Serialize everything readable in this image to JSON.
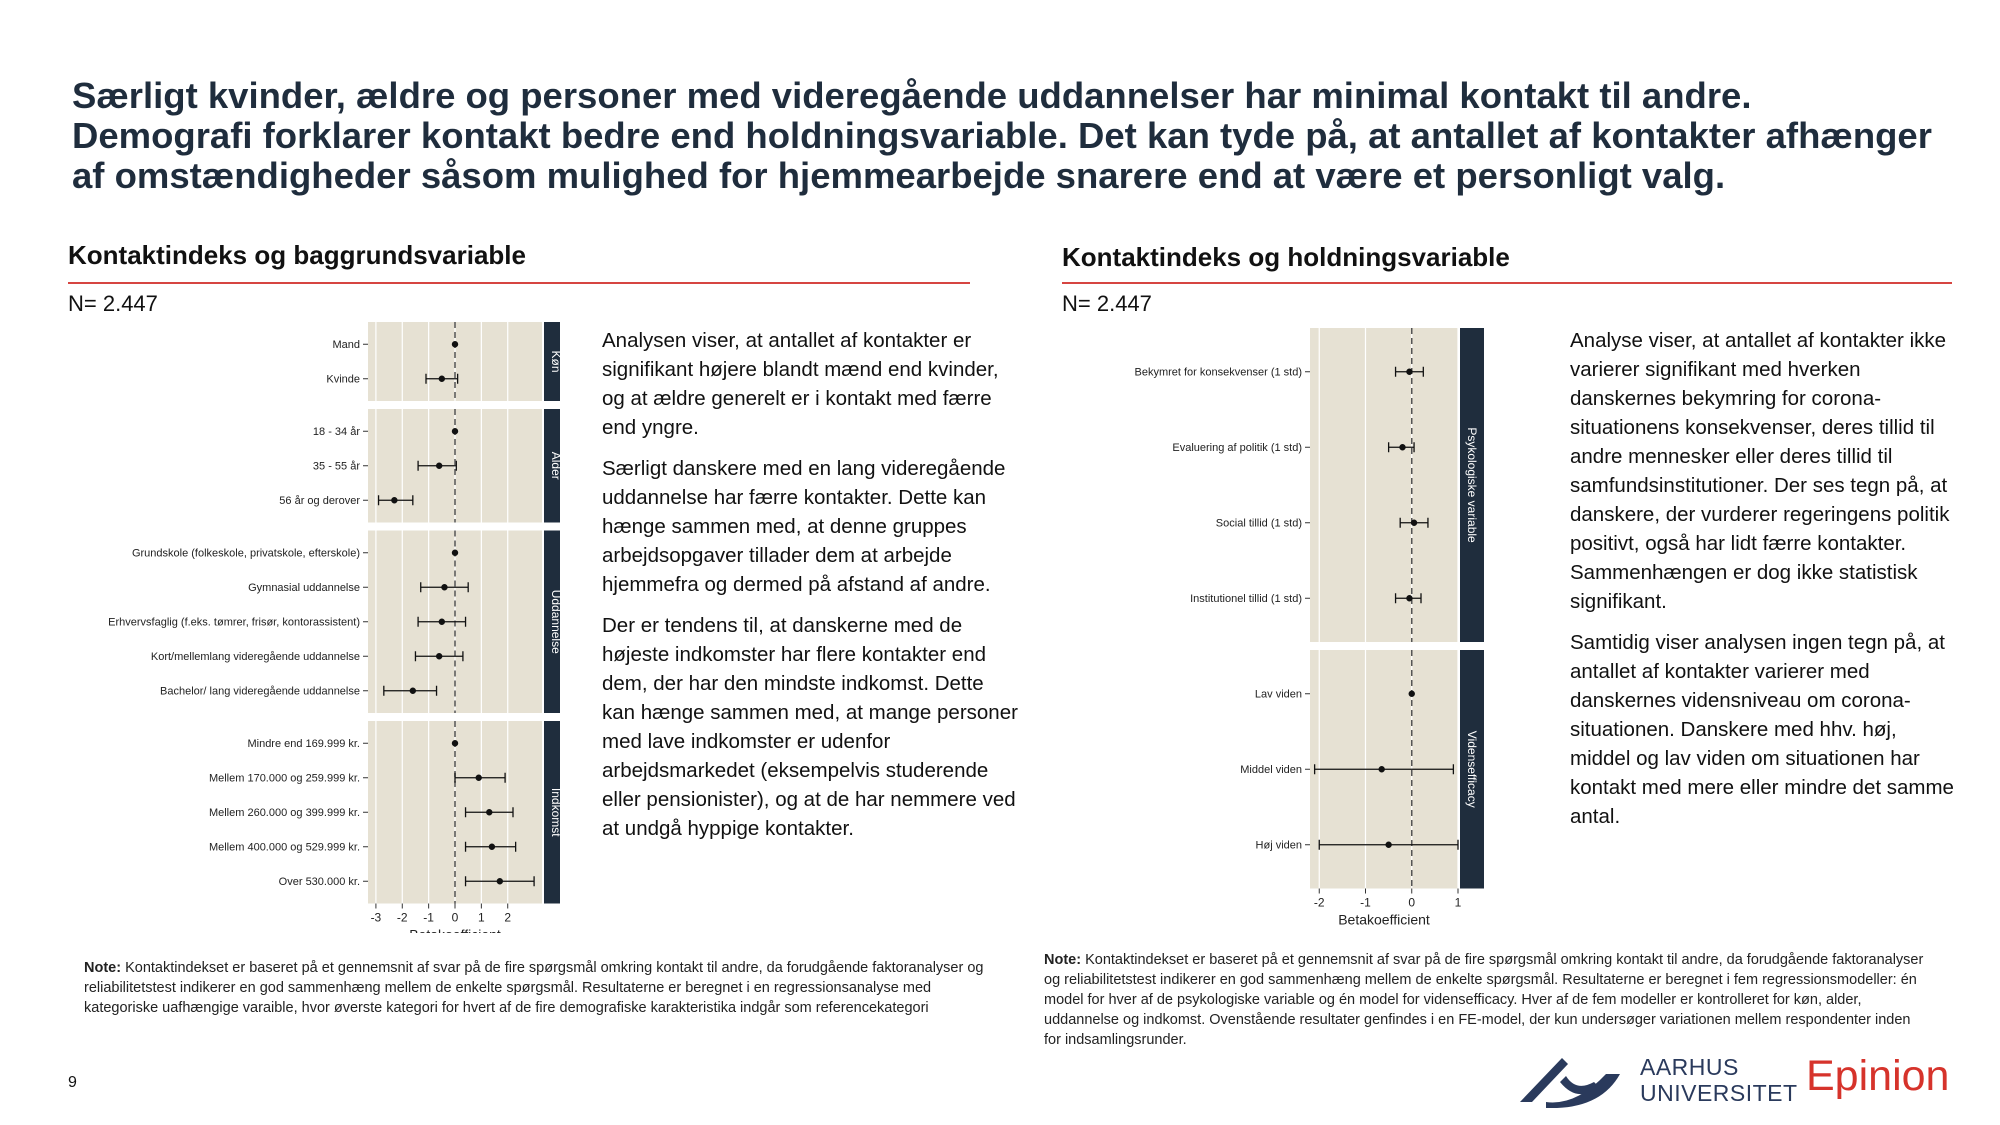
{
  "headline": "Særligt kvinder, ældre og personer med videregående uddannelser har minimal kontakt til andre. Demografi forklarer kontakt bedre end holdningsvariable. Det kan tyde på, at antallet af kontakter afhænger af omstændigheder såsom mulighed for hjemmearbejde snarere end at være et personligt valg.",
  "left": {
    "title": "Kontaktindeks og baggrundsvariable",
    "n_label": "N= 2.447",
    "paragraphs": [
      "Analysen viser, at antallet af kontakter er signifikant højere blandt mænd end kvinder, og at ældre generelt er i kontakt med færre end yngre.",
      "Særligt danskere med en lang videregående uddannelse har færre kontakter. Dette kan hænge sammen med, at denne gruppes arbejdsopgaver tillader dem at arbejde hjemmefra og dermed på afstand af andre.",
      "Der er tendens til, at danskerne med de højeste indkomster har flere kontakter end dem, der har den mindste indkomst. Dette kan hænge sammen med, at mange personer med lave indkomster er udenfor arbejdsmarkedet (eksempelvis studerende eller pensionister), og at de har nemmere ved at undgå hyppige kontakter."
    ],
    "note_label": "Note:",
    "note_text": " Kontaktindekset er baseret på et gennemsnit af svar på de fire spørgsmål omkring kontakt til andre, da forudgående faktoranalyser og reliabilitetstest indikerer en god sammenhæng mellem de enkelte spørgsmål. Resultaterne er beregnet i en regressionsanalyse med kategoriske uafhængige varaible, hvor øverste kategori for hvert af de fire demografiske karakteristika indgår som referencekategori"
  },
  "right": {
    "title": "Kontaktindeks og holdningsvariable",
    "n_label": "N= 2.447",
    "paragraphs": [
      "Analyse viser, at antallet af kontakter ikke varierer signifikant med hverken danskernes bekymring for corona-situationens konsekvenser, deres tillid til andre mennesker eller deres tillid til samfundsinstitutioner. Der ses tegn på, at danskere, der vurderer regeringens politik positivt, også har lidt færre kontakter. Sammenhængen er dog ikke statistisk signifikant.",
      "Samtidig viser analysen ingen tegn på, at antallet af kontakter varierer med danskernes vidensniveau om corona-situationen. Danskere med hhv. høj, middel og lav viden om situationen har kontakt med mere eller mindre det samme antal."
    ],
    "note_label": "Note:",
    "note_text": " Kontaktindekset er baseret på et gennemsnit af svar på de fire spørgsmål omkring kontakt til andre, da forudgående faktoranalyser og reliabilitetstest indikerer en god sammenhæng mellem de enkelte spørgsmål. Resultaterne er beregnet i fem regressionsmodeller: én model for hver af de psykologiske variable og én model for vidensefficacy. Hver af de fem modeller er kontrolleret for køn, alder, uddannelse og indkomst. Ovenstående resultater genfindes i en FE-model, der kun undersøger variationen mellem respondenter inden for indsamlingsrunder."
  },
  "page_number": "9",
  "logos": {
    "au_line1": "AARHUS",
    "au_line2": "UNIVERSITET",
    "epinion": "Epinion"
  },
  "colors": {
    "panel_bg": "#e6e1d3",
    "strip_bg": "#1f2d3d",
    "accent_red": "#d64541",
    "headline": "#1f2d3d"
  },
  "chart_data": [
    {
      "type": "scatter",
      "subtype": "coefficient-plot-with-error-bars",
      "xlabel": "Betakoefficient",
      "xlim": [
        -3.3,
        3.3
      ],
      "xticks": [
        -3,
        -2,
        -1,
        0,
        1,
        2
      ],
      "reference_line": 0,
      "panels": [
        {
          "label": "Køn",
          "rows": [
            {
              "label": "Mand",
              "est": 0,
              "lo": 0,
              "hi": 0
            },
            {
              "label": "Kvinde",
              "est": -0.5,
              "lo": -1.1,
              "hi": 0.1
            }
          ]
        },
        {
          "label": "Alder",
          "rows": [
            {
              "label": "18 - 34 år",
              "est": 0,
              "lo": 0,
              "hi": 0
            },
            {
              "label": "35 - 55 år",
              "est": -0.6,
              "lo": -1.4,
              "hi": 0.05
            },
            {
              "label": "56 år og derover",
              "est": -2.3,
              "lo": -2.9,
              "hi": -1.6
            }
          ]
        },
        {
          "label": "Uddannelse",
          "rows": [
            {
              "label": "Grundskole (folkeskole, privatskole, efterskole)",
              "est": 0,
              "lo": 0,
              "hi": 0
            },
            {
              "label": "Gymnasial uddannelse",
              "est": -0.4,
              "lo": -1.3,
              "hi": 0.5
            },
            {
              "label": "Erhvervsfaglig (f.eks. tømrer, frisør, kontorassistent)",
              "est": -0.5,
              "lo": -1.4,
              "hi": 0.4
            },
            {
              "label": "Kort/mellemlang videregående uddannelse",
              "est": -0.6,
              "lo": -1.5,
              "hi": 0.3
            },
            {
              "label": "Bachelor/ lang videregående uddannelse",
              "est": -1.6,
              "lo": -2.7,
              "hi": -0.7
            }
          ]
        },
        {
          "label": "Indkomst",
          "rows": [
            {
              "label": "Mindre end 169.999 kr.",
              "est": 0,
              "lo": 0,
              "hi": 0
            },
            {
              "label": "Mellem 170.000 og 259.999 kr.",
              "est": 0.9,
              "lo": 0,
              "hi": 1.9
            },
            {
              "label": "Mellem 260.000 og 399.999 kr.",
              "est": 1.3,
              "lo": 0.4,
              "hi": 2.2
            },
            {
              "label": "Mellem 400.000 og 529.999 kr.",
              "est": 1.4,
              "lo": 0.4,
              "hi": 2.3
            },
            {
              "label": "Over 530.000 kr.",
              "est": 1.7,
              "lo": 0.4,
              "hi": 3.0
            }
          ]
        }
      ]
    },
    {
      "type": "scatter",
      "subtype": "coefficient-plot-with-error-bars",
      "xlabel": "Betakoefficient",
      "xlim": [
        -2.2,
        1.0
      ],
      "xticks": [
        -2,
        -1,
        0,
        1
      ],
      "reference_line": 0,
      "panels": [
        {
          "label": "Psykologiske variable",
          "rows": [
            {
              "label": "Bekymret for konsekvenser (1 std)",
              "est": -0.05,
              "lo": -0.35,
              "hi": 0.25
            },
            {
              "label": "Evaluering af politik (1 std)",
              "est": -0.2,
              "lo": -0.5,
              "hi": 0.05
            },
            {
              "label": "Social tillid (1 std)",
              "est": 0.05,
              "lo": -0.25,
              "hi": 0.35
            },
            {
              "label": "Institutionel tillid (1 std)",
              "est": -0.05,
              "lo": -0.35,
              "hi": 0.2
            }
          ]
        },
        {
          "label": "Vidensefficacy",
          "rows": [
            {
              "label": "Lav viden",
              "est": 0,
              "lo": 0,
              "hi": 0
            },
            {
              "label": "Middel viden",
              "est": -0.65,
              "lo": -2.1,
              "hi": 0.9
            },
            {
              "label": "Høj viden",
              "est": -0.5,
              "lo": -2.0,
              "hi": 1.0
            }
          ]
        }
      ]
    }
  ]
}
